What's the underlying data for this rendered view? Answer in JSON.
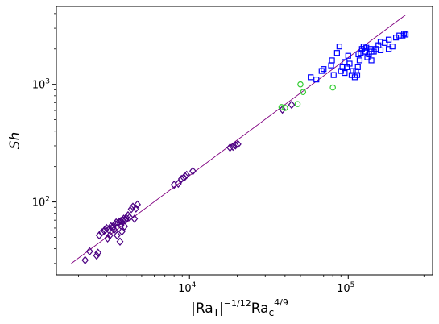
{
  "chart_data": {
    "type": "scatter",
    "title": "",
    "xlabel_parts": [
      "|Ra",
      "T",
      "|",
      "−1/12",
      "Ra",
      "c",
      "4/9"
    ],
    "ylabel": "Sh",
    "xscale": "log",
    "yscale": "log",
    "xlim": [
      1450,
      340000
    ],
    "ylim": [
      24,
      4600
    ],
    "grid": false,
    "legend": "none",
    "x_ticks": [
      {
        "value": 10000,
        "base": "10",
        "exp": "4"
      },
      {
        "value": 100000,
        "base": "10",
        "exp": "5"
      }
    ],
    "y_ticks": [
      {
        "value": 100,
        "base": "10",
        "exp": "2"
      },
      {
        "value": 1000,
        "base": "10",
        "exp": "3"
      }
    ],
    "fit_line": {
      "x": [
        1800,
        230000
      ],
      "y": [
        30,
        3900
      ],
      "color": "#800080"
    },
    "series": [
      {
        "marker": "diamond",
        "color": "#4b0082",
        "x": [
          2200,
          2350,
          2600,
          2650,
          2700,
          2800,
          2900,
          2950,
          3000,
          3050,
          3150,
          3200,
          3300,
          3350,
          3400,
          3450,
          3500,
          3550,
          3600,
          3650,
          3700,
          3750,
          3800,
          3850,
          3900,
          3950,
          4000,
          4100,
          4200,
          4300,
          4400,
          4500,
          4600,
          4700,
          3100,
          3300,
          3700,
          8000,
          8500,
          8900,
          9200,
          9400,
          9600,
          10500,
          18000,
          18800,
          19500,
          20200,
          38500,
          44000
        ],
        "y": [
          32,
          38,
          35,
          37,
          52,
          55,
          57,
          58,
          60,
          49,
          52,
          62,
          60,
          58,
          65,
          67,
          52,
          66,
          68,
          46,
          69,
          56,
          70,
          72,
          62,
          70,
          73,
          77,
          74,
          87,
          91,
          72,
          88,
          95,
          58,
          62,
          63,
          140,
          143,
          157,
          161,
          165,
          170,
          183,
          290,
          295,
          303,
          310,
          610,
          670
        ]
      },
      {
        "marker": "circle",
        "color": "#33cc33",
        "x": [
          38000,
          40000,
          48000,
          50000,
          52000,
          80000
        ],
        "y": [
          640,
          630,
          680,
          1000,
          860,
          940
        ]
      },
      {
        "marker": "square",
        "color": "#0000ff",
        "x": [
          58000,
          63000,
          68000,
          70000,
          78000,
          79000,
          81000,
          85000,
          88000,
          90000,
          92000,
          95000,
          98000,
          100000,
          102000,
          105000,
          107000,
          110000,
          112000,
          114000,
          116000,
          118000,
          120000,
          122000,
          125000,
          128000,
          130000,
          132000,
          135000,
          138000,
          140000,
          145000,
          150000,
          155000,
          160000,
          170000,
          180000,
          190000,
          200000,
          210000,
          220000,
          225000,
          230000,
          180000,
          160000,
          140000,
          115000,
          95000
        ],
        "y": [
          1150,
          1100,
          1300,
          1350,
          1450,
          1600,
          1200,
          1850,
          2100,
          1300,
          1400,
          1250,
          1400,
          1750,
          1500,
          1200,
          1300,
          1150,
          1300,
          1200,
          1800,
          1600,
          1850,
          2000,
          2100,
          1900,
          2050,
          1700,
          1800,
          2000,
          1900,
          1900,
          2000,
          2150,
          2300,
          2250,
          2400,
          2100,
          2500,
          2600,
          2600,
          2700,
          2650,
          2000,
          1950,
          1600,
          1400,
          1550
        ]
      }
    ]
  }
}
